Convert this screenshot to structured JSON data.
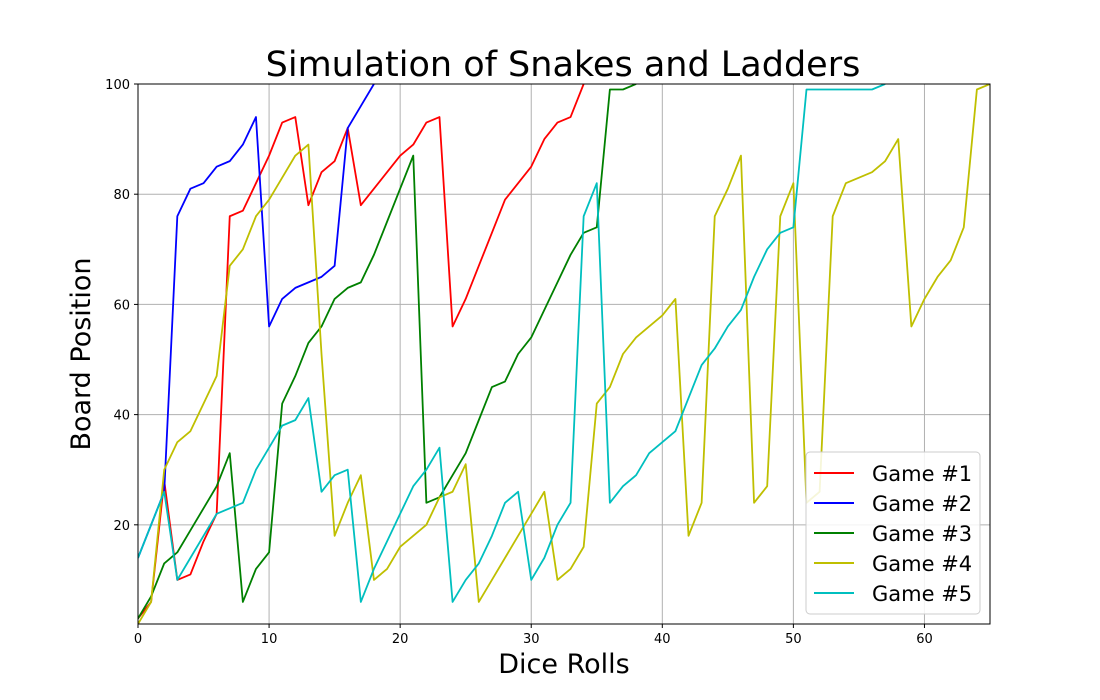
{
  "chart_data": {
    "type": "line",
    "title": "Simulation of Snakes and Ladders",
    "xlabel": "Dice Rolls",
    "ylabel": "Board Position",
    "xlim": [
      0,
      65
    ],
    "ylim": [
      2,
      100
    ],
    "xticks": [
      0,
      10,
      20,
      30,
      40,
      50,
      60
    ],
    "yticks": [
      20,
      40,
      60,
      80,
      100
    ],
    "grid": true,
    "legend_position": "lower-right",
    "series": [
      {
        "name": "Game #1",
        "color": "#ff0000",
        "values": [
          3,
          6,
          28,
          10,
          11,
          17,
          22,
          76,
          77,
          82,
          87,
          93,
          94,
          78,
          84,
          86,
          92,
          78,
          81,
          84,
          87,
          89,
          93,
          94,
          56,
          61,
          67,
          73,
          79,
          82,
          85,
          90,
          93,
          94,
          100
        ]
      },
      {
        "name": "Game #2",
        "color": "#0000ff",
        "values": [
          14,
          20,
          26,
          76,
          81,
          82,
          85,
          86,
          89,
          94,
          56,
          61,
          63,
          64,
          65,
          67,
          92,
          96,
          100
        ]
      },
      {
        "name": "Game #3",
        "color": "#008000",
        "values": [
          3,
          7,
          13,
          15,
          19,
          23,
          27,
          33,
          6,
          12,
          15,
          42,
          47,
          53,
          56,
          61,
          63,
          64,
          69,
          75,
          81,
          87,
          24,
          25,
          29,
          33,
          39,
          45,
          46,
          51,
          54,
          59,
          64,
          69,
          73,
          74,
          99,
          99,
          100
        ]
      },
      {
        "name": "Game #4",
        "color": "#bfbf00",
        "values": [
          2,
          6,
          30,
          35,
          37,
          42,
          47,
          67,
          70,
          76,
          79,
          83,
          87,
          89,
          51,
          18,
          24,
          29,
          10,
          12,
          16,
          18,
          20,
          25,
          26,
          31,
          6,
          10,
          14,
          18,
          22,
          26,
          10,
          12,
          16,
          42,
          45,
          51,
          54,
          56,
          58,
          61,
          18,
          24,
          76,
          81,
          87,
          24,
          27,
          76,
          82,
          24,
          26,
          76,
          82,
          83,
          84,
          86,
          90,
          56,
          61,
          65,
          68,
          74,
          99,
          100
        ]
      },
      {
        "name": "Game #5",
        "color": "#00bfbf",
        "values": [
          14,
          20,
          26,
          10,
          14,
          18,
          22,
          23,
          24,
          30,
          34,
          38,
          39,
          43,
          26,
          29,
          30,
          6,
          12,
          17,
          22,
          27,
          30,
          34,
          6,
          10,
          13,
          18,
          24,
          26,
          10,
          14,
          20,
          24,
          76,
          82,
          24,
          27,
          29,
          33,
          35,
          37,
          43,
          49,
          52,
          56,
          59,
          65,
          70,
          73,
          74,
          99,
          99,
          99,
          99,
          99,
          99,
          100
        ]
      }
    ]
  }
}
